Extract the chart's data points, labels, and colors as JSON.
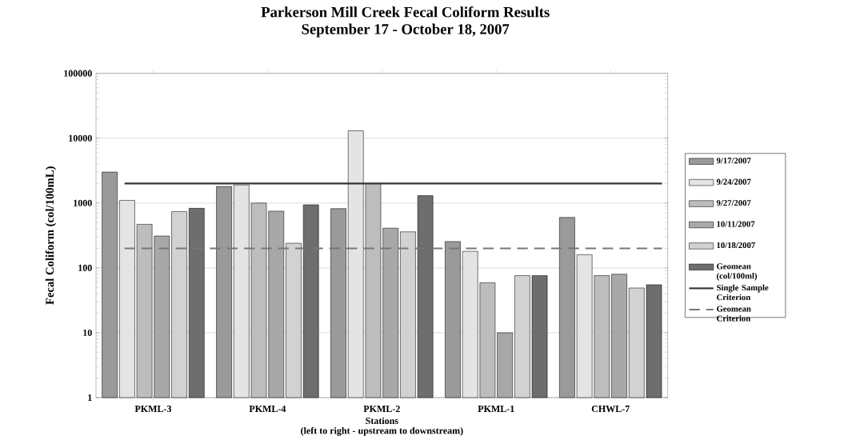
{
  "chart_data": {
    "type": "bar",
    "title": "Parkerson Mill Creek Fecal Coliform Results",
    "subtitle": "September 17 - October 18, 2007",
    "xlabel": "Stations",
    "ylabel": "Fecal Coliform (col/100mL)",
    "annotations": [
      "(left to right - upstream to downstream)"
    ],
    "categories": [
      "PKML-3",
      "PKML-4",
      "PKML-2",
      "PKML-1",
      "CHWL-7"
    ],
    "series": [
      {
        "name": "9/17/2007",
        "color": "#9a9a9a",
        "values": [
          3000,
          1800,
          820,
          255,
          600
        ]
      },
      {
        "name": "9/24/2007",
        "color": "#e4e4e4",
        "values": [
          1100,
          1900,
          13000,
          180,
          160
        ]
      },
      {
        "name": "9/27/2007",
        "color": "#bdbdbd",
        "values": [
          470,
          1000,
          2000,
          59,
          76
        ]
      },
      {
        "name": "10/11/2007",
        "color": "#a8a8a8",
        "values": [
          310,
          750,
          410,
          10,
          80
        ]
      },
      {
        "name": "10/18/2007",
        "color": "#d2d2d2",
        "values": [
          740,
          240,
          360,
          76,
          49
        ]
      },
      {
        "name": "Geomean (col/100ml)",
        "color": "#6e6e6e",
        "values": [
          830,
          940,
          1300,
          76,
          55
        ]
      }
    ],
    "ref_lines": [
      {
        "axis": "y",
        "value": 2000,
        "label": "Single Sample Criterion",
        "color": "#333333",
        "line_style": "solid"
      },
      {
        "axis": "y",
        "value": 200,
        "label": "Geomean Criterion",
        "color": "#777777",
        "line_style": "dashed"
      }
    ],
    "log": true,
    "ylim": [
      1,
      100000
    ],
    "yticks": [
      1,
      10,
      100,
      1000,
      10000,
      100000
    ],
    "grid": "y",
    "legend": "right"
  }
}
